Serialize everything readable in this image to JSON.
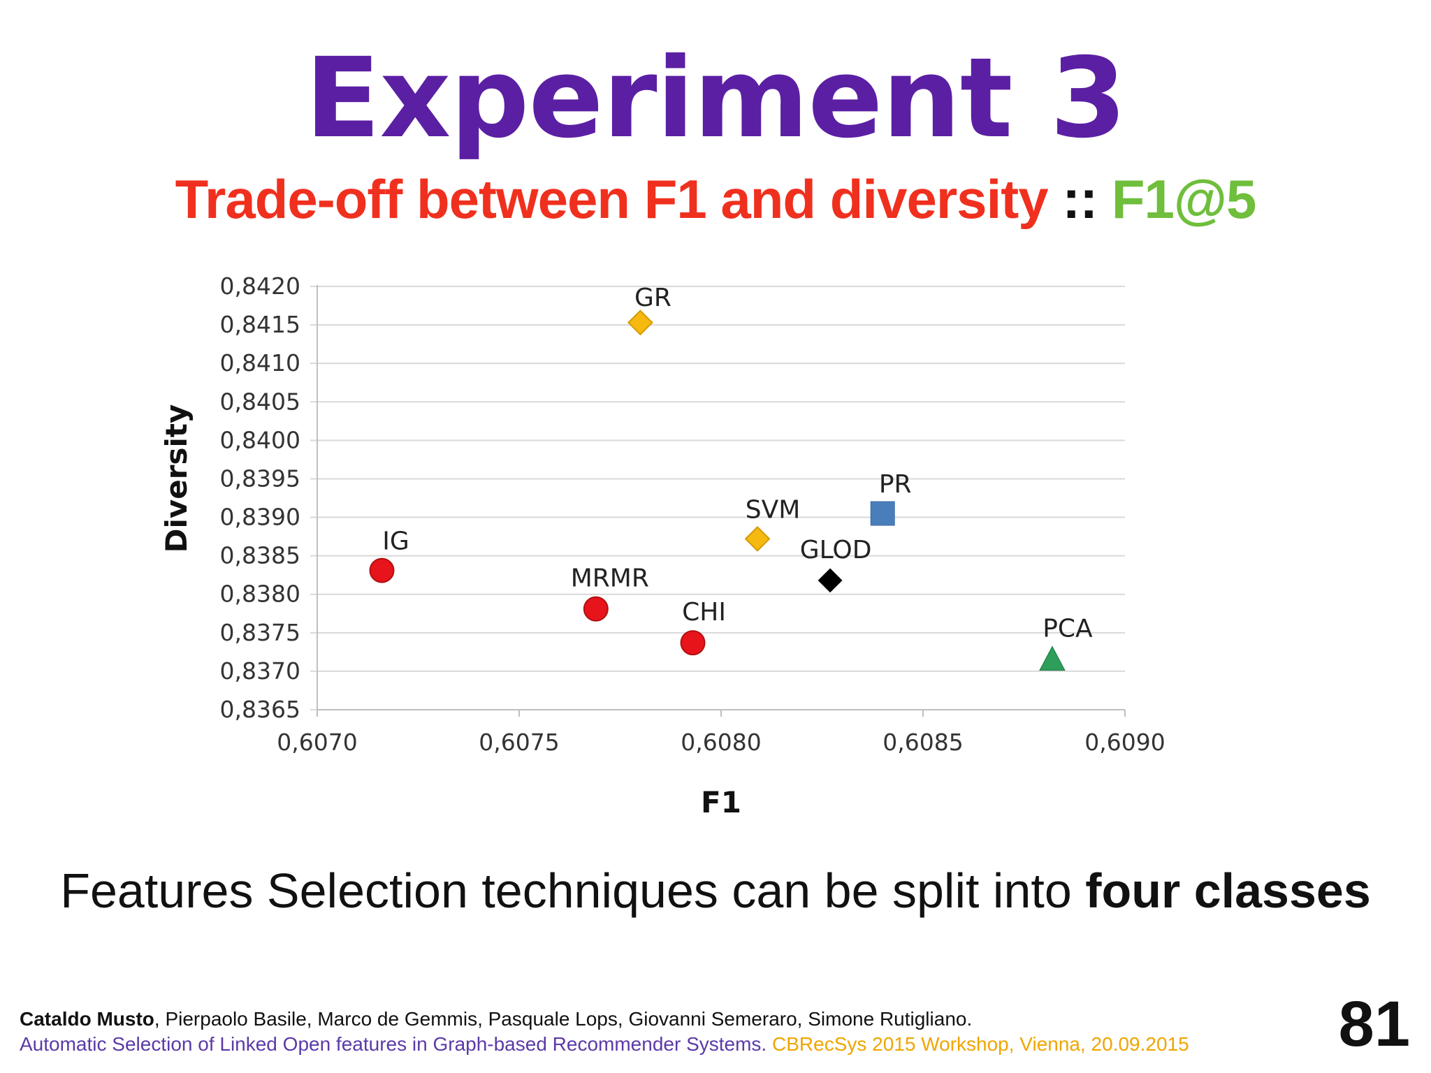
{
  "slide": {
    "title": "Experiment 3",
    "subtitle_main": "Trade-off between F1 and diversity",
    "subtitle_sep": " :: ",
    "subtitle_metric": "F1@5",
    "statement_prefix": "Features Selection techniques can be split into ",
    "statement_bold": "four classes",
    "footer": {
      "author_bold": "Cataldo Musto",
      "authors_rest": ", Pierpaolo Basile, Marco de Gemmis, Pasquale Lops, Giovanni Semeraro, Simone Rutigliano.",
      "paper": "Automatic Selection of Linked Open features in Graph-based Recommender Systems.",
      "venue": " CBRecSys 2015 Workshop, Vienna, 20.09.2015"
    },
    "page_number": "81"
  },
  "chart_data": {
    "type": "scatter",
    "title": "",
    "xlabel": "F1",
    "ylabel": "Diversity",
    "xlim": [
      0.607,
      0.609
    ],
    "ylim": [
      0.8365,
      0.842
    ],
    "x_ticks": [
      "0,6070",
      "0,6075",
      "0,6080",
      "0,6085",
      "0,6090"
    ],
    "x_tick_values": [
      0.607,
      0.6075,
      0.608,
      0.6085,
      0.609
    ],
    "y_ticks": [
      "0,8420",
      "0,8415",
      "0,8410",
      "0,8405",
      "0,8400",
      "0,8395",
      "0,8390",
      "0,8385",
      "0,8380",
      "0,8375",
      "0,8370",
      "0,8365"
    ],
    "y_tick_values": [
      0.842,
      0.8415,
      0.841,
      0.8405,
      0.84,
      0.8395,
      0.839,
      0.8385,
      0.838,
      0.8375,
      0.837,
      0.8365
    ],
    "grid": "horizontal",
    "points": [
      {
        "label": "GR",
        "x": 0.6078,
        "y": 0.84153,
        "marker": "diamond",
        "color": "#f5b90f"
      },
      {
        "label": "SVM",
        "x": 0.60809,
        "y": 0.83872,
        "marker": "diamond",
        "color": "#f5b90f"
      },
      {
        "label": "PR",
        "x": 0.6084,
        "y": 0.83905,
        "marker": "square",
        "color": "#4a7ebb"
      },
      {
        "label": "GLOD",
        "x": 0.60827,
        "y": 0.83818,
        "marker": "diamond",
        "color": "#000000"
      },
      {
        "label": "IG",
        "x": 0.60716,
        "y": 0.83831,
        "marker": "circle",
        "color": "#e8141b"
      },
      {
        "label": "MRMR",
        "x": 0.60769,
        "y": 0.83781,
        "marker": "circle",
        "color": "#e8141b"
      },
      {
        "label": "CHI",
        "x": 0.60793,
        "y": 0.83737,
        "marker": "circle",
        "color": "#e8141b"
      },
      {
        "label": "PCA",
        "x": 0.60882,
        "y": 0.83714,
        "marker": "triangle",
        "color": "#2e9e5b"
      }
    ]
  }
}
